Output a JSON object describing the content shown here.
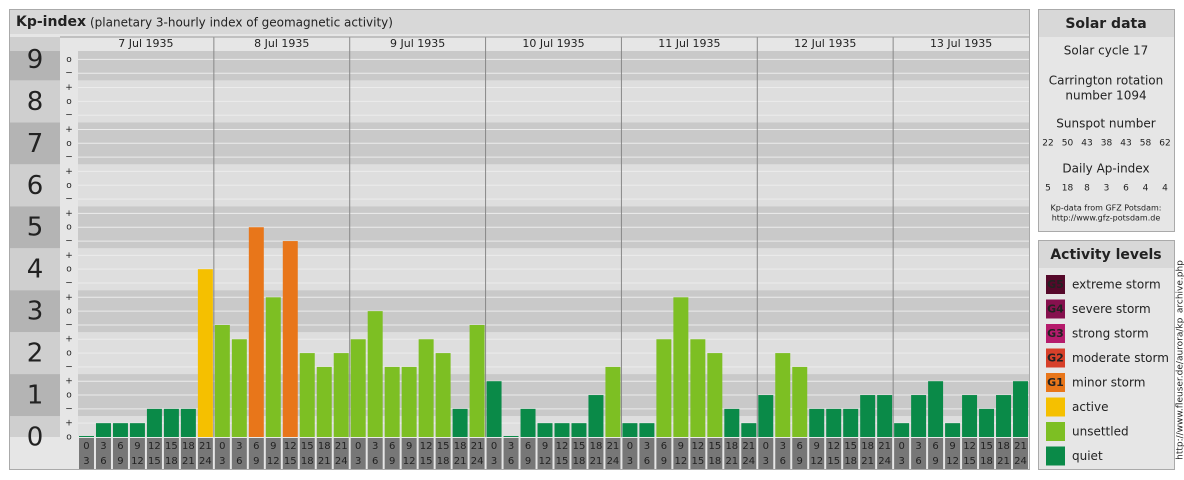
{
  "chart_data": {
    "type": "bar",
    "title": "Kp-index",
    "subtitle": "(planetary 3-hourly index of geomagnetic activity)",
    "days": [
      "7 Jul 1935",
      "8 Jul 1935",
      "9 Jul 1935",
      "10 Jul 1935",
      "11 Jul 1935",
      "12 Jul 1935",
      "13 Jul 1935"
    ],
    "hour_starts": [
      "0",
      "3",
      "6",
      "9",
      "12",
      "15",
      "18",
      "21"
    ],
    "hour_ends": [
      "3",
      "6",
      "9",
      "12",
      "15",
      "18",
      "21",
      "24"
    ],
    "values": [
      0,
      0.33,
      0.33,
      0.33,
      0.67,
      0.67,
      0.67,
      4,
      2.67,
      2.33,
      5,
      3.33,
      4.67,
      2,
      1.67,
      2,
      2.33,
      3,
      1.67,
      1.67,
      2.33,
      2,
      0.67,
      2.67,
      1.33,
      0,
      0.67,
      0.33,
      0.33,
      0.33,
      1,
      1.67,
      0.33,
      0.33,
      2.33,
      3.33,
      2.33,
      2,
      0.67,
      0.33,
      1,
      2,
      1.67,
      0.67,
      0.67,
      0.67,
      1,
      1,
      0.33,
      1,
      1.33,
      0.33,
      1,
      0.67,
      1,
      1.33
    ],
    "colors": [
      "#0a8a48",
      "#0a8a48",
      "#0a8a48",
      "#0a8a48",
      "#0a8a48",
      "#0a8a48",
      "#0a8a48",
      "#f5c000",
      "#7dbf23",
      "#7dbf23",
      "#e8761a",
      "#7dbf23",
      "#e8761a",
      "#7dbf23",
      "#7dbf23",
      "#7dbf23",
      "#7dbf23",
      "#7dbf23",
      "#7dbf23",
      "#7dbf23",
      "#7dbf23",
      "#7dbf23",
      "#0a8a48",
      "#7dbf23",
      "#0a8a48",
      "#0a8a48",
      "#0a8a48",
      "#0a8a48",
      "#0a8a48",
      "#0a8a48",
      "#0a8a48",
      "#7dbf23",
      "#0a8a48",
      "#0a8a48",
      "#7dbf23",
      "#7dbf23",
      "#7dbf23",
      "#7dbf23",
      "#0a8a48",
      "#0a8a48",
      "#0a8a48",
      "#7dbf23",
      "#7dbf23",
      "#0a8a48",
      "#0a8a48",
      "#0a8a48",
      "#0a8a48",
      "#0a8a48",
      "#0a8a48",
      "#0a8a48",
      "#0a8a48",
      "#0a8a48",
      "#0a8a48",
      "#0a8a48",
      "#0a8a48",
      "#0a8a48"
    ],
    "ylim": [
      0,
      9.2
    ],
    "yticks": [
      0,
      1,
      2,
      3,
      4,
      5,
      6,
      7,
      8,
      9
    ],
    "minor_yticks": [
      {
        "value": 0,
        "label": "o"
      },
      {
        "value": 0.33,
        "label": "+"
      },
      {
        "value": 0.67,
        "label": "−"
      },
      {
        "value": 1,
        "label": "o"
      },
      {
        "value": 1.33,
        "label": "+"
      },
      {
        "value": 1.67,
        "label": "−"
      },
      {
        "value": 2,
        "label": "o"
      },
      {
        "value": 2.33,
        "label": "+"
      },
      {
        "value": 2.67,
        "label": "−"
      },
      {
        "value": 3,
        "label": "o"
      },
      {
        "value": 3.33,
        "label": "+"
      },
      {
        "value": 3.67,
        "label": "−"
      },
      {
        "value": 4,
        "label": "o"
      },
      {
        "value": 4.33,
        "label": "+"
      },
      {
        "value": 4.67,
        "label": "−"
      },
      {
        "value": 5,
        "label": "o"
      },
      {
        "value": 5.33,
        "label": "+"
      },
      {
        "value": 5.67,
        "label": "−"
      },
      {
        "value": 6,
        "label": "o"
      },
      {
        "value": 6.33,
        "label": "+"
      },
      {
        "value": 6.67,
        "label": "−"
      },
      {
        "value": 7,
        "label": "o"
      },
      {
        "value": 7.33,
        "label": "+"
      },
      {
        "value": 7.67,
        "label": "−"
      },
      {
        "value": 8,
        "label": "o"
      },
      {
        "value": 8.33,
        "label": "+"
      },
      {
        "value": 8.67,
        "label": "−"
      },
      {
        "value": 9,
        "label": "o"
      }
    ],
    "solar": {
      "title": "Solar data",
      "cycle": "Solar cycle 17",
      "carrington": [
        "Carrington rotation",
        "number 1094"
      ],
      "sunspot_title": "Sunspot number",
      "sunspot": [
        22,
        50,
        43,
        38,
        43,
        58,
        62
      ],
      "ap_title": "Daily Ap-index",
      "ap": [
        5,
        18,
        8,
        3,
        6,
        4,
        4
      ],
      "note": [
        "Kp-data from GFZ Potsdam:",
        "http://www.gfz-potsdam.de"
      ]
    },
    "legend_title": "Activity levels",
    "legend": [
      {
        "badge": "G5",
        "label": "extreme storm",
        "color": "#55082a"
      },
      {
        "badge": "G4",
        "label": "severe storm",
        "color": "#86104e"
      },
      {
        "badge": "G3",
        "label": "strong storm",
        "color": "#b51b6c"
      },
      {
        "badge": "G2",
        "label": "moderate storm",
        "color": "#d7402a"
      },
      {
        "badge": "G1",
        "label": "minor storm",
        "color": "#e8761a"
      },
      {
        "label": "active",
        "color": "#f5c000"
      },
      {
        "label": "unsettled",
        "color": "#7dbf23"
      },
      {
        "label": "quiet",
        "color": "#0a8a48"
      }
    ],
    "credit": "http://www.fleuser.de/aurora/kp_archive.php"
  }
}
